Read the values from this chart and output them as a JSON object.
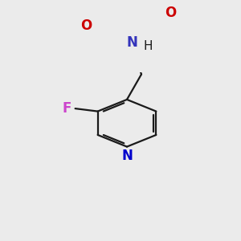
{
  "background_color": "#ebebeb",
  "bond_color": "#1a1a1a",
  "bond_lw": 1.6,
  "fig_width": 3.0,
  "fig_height": 3.0,
  "dpi": 100,
  "atoms": {
    "O_carbonyl": {
      "label": "O",
      "color": "#cc0000"
    },
    "O_ether": {
      "label": "O",
      "color": "#cc0000"
    },
    "N_amine": {
      "label": "N",
      "color": "#3333bb"
    },
    "N_pyridine": {
      "label": "N",
      "color": "#0000cc"
    },
    "F": {
      "label": "F",
      "color": "#cc00cc"
    }
  }
}
